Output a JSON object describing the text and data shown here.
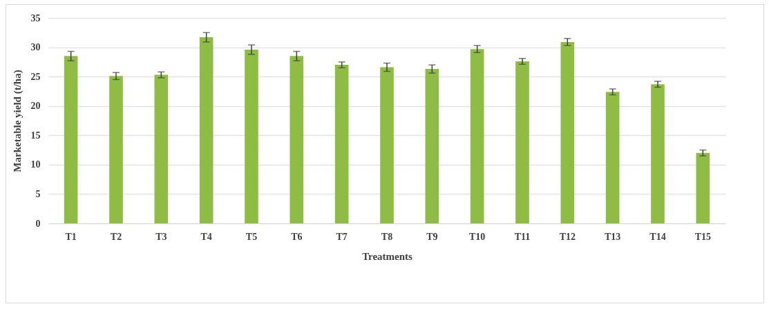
{
  "chart_data": {
    "type": "bar",
    "xlabel": "Treatments",
    "ylabel": "Marketable yield (t/ha)",
    "categories": [
      "T1",
      "T2",
      "T3",
      "T4",
      "T5",
      "T6",
      "T7",
      "T8",
      "T9",
      "T10",
      "T11",
      "T12",
      "T13",
      "T14",
      "T15"
    ],
    "values": [
      28.5,
      25.1,
      25.3,
      31.7,
      29.6,
      28.5,
      27.0,
      26.6,
      26.3,
      29.7,
      27.6,
      30.9,
      22.4,
      23.7,
      12.0
    ],
    "errors": [
      0.8,
      0.6,
      0.5,
      0.8,
      0.8,
      0.8,
      0.5,
      0.7,
      0.7,
      0.6,
      0.5,
      0.6,
      0.5,
      0.5,
      0.5
    ],
    "color": "#8fbc45",
    "ylim": [
      0,
      35
    ],
    "yticks": [
      0,
      5,
      10,
      15,
      20,
      25,
      30,
      35
    ],
    "grid": "y"
  }
}
